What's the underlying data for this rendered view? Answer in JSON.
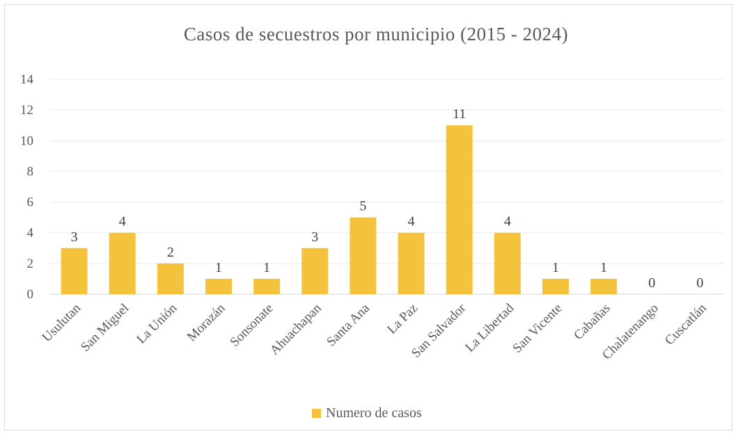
{
  "chart_data": {
    "type": "bar",
    "title": "Casos de secuestros por municipio (2015 - 2024)",
    "categories": [
      "Usulutan",
      "San Miguel",
      "La Unión",
      "Morazán",
      "Sonsonate",
      "Ahuachapan",
      "Santa Ana",
      "La Paz",
      "San Salvador",
      "La Libertad",
      "San Vicente",
      "Cabañas",
      "Chalatenango",
      "Cuscatlán"
    ],
    "series": [
      {
        "name": "Numero de casos",
        "values": [
          3,
          4,
          2,
          1,
          1,
          3,
          5,
          4,
          11,
          4,
          1,
          1,
          0,
          0
        ],
        "color": "#F5C33B"
      }
    ],
    "yticks": [
      "0",
      "2",
      "4",
      "6",
      "8",
      "10",
      "12",
      "14"
    ],
    "ylim": [
      0,
      14
    ],
    "grid": true,
    "data_labels": true,
    "legend_position": "bottom",
    "xlabel": "",
    "ylabel": ""
  }
}
